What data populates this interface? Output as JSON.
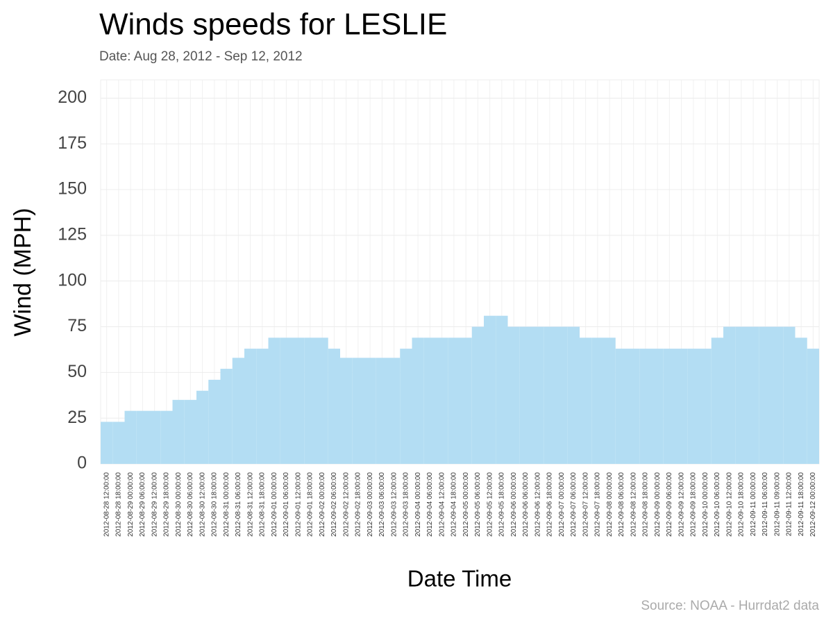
{
  "chart_data": {
    "type": "bar",
    "title": "Winds speeds for LESLIE",
    "subtitle": "Date:  Aug 28, 2012 - Sep 12, 2012",
    "x_label": "Date Time",
    "y_label": "Wind (MPH)",
    "source": "Source: NOAA - Hurrdat2 data",
    "color": "#b3ddf3",
    "grid": true,
    "ylim": [
      0,
      210
    ],
    "yticks": [
      0,
      25,
      50,
      75,
      100,
      125,
      150,
      175,
      200
    ],
    "categories": [
      "2012-08-28 12:00:00",
      "2012-08-28 18:00:00",
      "2012-08-29 00:00:00",
      "2012-08-29 06:00:00",
      "2012-08-29 12:00:00",
      "2012-08-29 18:00:00",
      "2012-08-30 00:00:00",
      "2012-08-30 06:00:00",
      "2012-08-30 12:00:00",
      "2012-08-30 18:00:00",
      "2012-08-31 00:00:00",
      "2012-08-31 06:00:00",
      "2012-08-31 12:00:00",
      "2012-08-31 18:00:00",
      "2012-09-01 00:00:00",
      "2012-09-01 06:00:00",
      "2012-09-01 12:00:00",
      "2012-09-01 18:00:00",
      "2012-09-02 00:00:00",
      "2012-09-02 06:00:00",
      "2012-09-02 12:00:00",
      "2012-09-02 18:00:00",
      "2012-09-03 00:00:00",
      "2012-09-03 06:00:00",
      "2012-09-03 12:00:00",
      "2012-09-03 18:00:00",
      "2012-09-04 00:00:00",
      "2012-09-04 06:00:00",
      "2012-09-04 12:00:00",
      "2012-09-04 18:00:00",
      "2012-09-05 00:00:00",
      "2012-09-05 06:00:00",
      "2012-09-05 12:00:00",
      "2012-09-05 18:00:00",
      "2012-09-06 00:00:00",
      "2012-09-06 06:00:00",
      "2012-09-06 12:00:00",
      "2012-09-06 18:00:00",
      "2012-09-07 00:00:00",
      "2012-09-07 06:00:00",
      "2012-09-07 12:00:00",
      "2012-09-07 18:00:00",
      "2012-09-08 00:00:00",
      "2012-09-08 06:00:00",
      "2012-09-08 12:00:00",
      "2012-09-08 18:00:00",
      "2012-09-09 00:00:00",
      "2012-09-09 06:00:00",
      "2012-09-09 12:00:00",
      "2012-09-09 18:00:00",
      "2012-09-10 00:00:00",
      "2012-09-10 06:00:00",
      "2012-09-10 12:00:00",
      "2012-09-10 18:00:00",
      "2012-09-11 00:00:00",
      "2012-09-11 06:00:00",
      "2012-09-11 09:00:00",
      "2012-09-11 12:00:00",
      "2012-09-11 18:00:00",
      "2012-09-12 00:00:00"
    ],
    "values": [
      23,
      23,
      29,
      29,
      29,
      29,
      35,
      35,
      40,
      46,
      52,
      58,
      63,
      63,
      69,
      69,
      69,
      69,
      69,
      63,
      58,
      58,
      58,
      58,
      58,
      63,
      69,
      69,
      69,
      69,
      69,
      75,
      81,
      81,
      75,
      75,
      75,
      75,
      75,
      75,
      69,
      69,
      69,
      63,
      63,
      63,
      63,
      63,
      63,
      63,
      63,
      69,
      75,
      75,
      75,
      75,
      75,
      75,
      69,
      63
    ]
  }
}
